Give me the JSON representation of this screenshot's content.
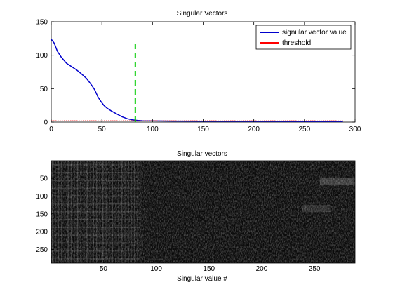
{
  "chart_data": [
    {
      "type": "line",
      "title": "Singular Vectors",
      "xlabel": "",
      "ylabel": "",
      "xlim": [
        0,
        300
      ],
      "ylim": [
        0,
        150
      ],
      "xticks": [
        0,
        50,
        100,
        150,
        200,
        250,
        300
      ],
      "yticks": [
        0,
        50,
        100,
        150
      ],
      "legend_position": "top-right",
      "grid": false,
      "series": [
        {
          "name": "signular vector value",
          "color": "#0000cc",
          "style": "solid",
          "x": [
            0,
            3,
            6,
            10,
            15,
            20,
            25,
            30,
            35,
            40,
            43,
            46,
            49,
            52,
            55,
            60,
            65,
            70,
            75,
            80,
            85,
            90,
            100,
            120,
            150,
            200,
            250,
            288
          ],
          "y": [
            124,
            118,
            106,
            97,
            88,
            83,
            78,
            72,
            65,
            55,
            48,
            38,
            31,
            25,
            21,
            16,
            12,
            8,
            5,
            3.5,
            2.5,
            2,
            1.8,
            1.5,
            1.3,
            1.2,
            1.1,
            1.0
          ]
        },
        {
          "name": "threshold",
          "color": "#ff0000",
          "style": "dotted",
          "x": [
            0,
            288
          ],
          "y": [
            2,
            2
          ]
        },
        {
          "name": "",
          "color": "#00cc00",
          "style": "dashed",
          "x": [
            83,
            83
          ],
          "y": [
            0,
            122
          ]
        }
      ]
    },
    {
      "type": "heatmap",
      "title": "Singular vectors",
      "xlabel": "Singular value #",
      "ylabel": "",
      "xlim": [
        0.5,
        288.5
      ],
      "ylim": [
        0.5,
        288.5
      ],
      "xticks": [
        50,
        100,
        150,
        200,
        250
      ],
      "yticks": [
        50,
        100,
        150,
        200,
        250
      ],
      "colormap": "gray",
      "rows": 288,
      "columns": 288
    }
  ]
}
